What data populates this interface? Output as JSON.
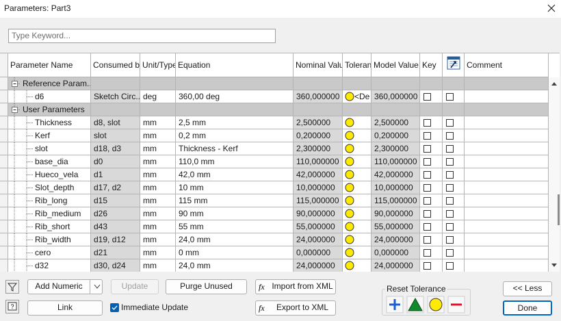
{
  "window": {
    "title": "Parameters: Part3"
  },
  "search": {
    "placeholder": "Type Keyword..."
  },
  "table": {
    "columns": [
      "Parameter Name",
      "Consumed by",
      "Unit/Type",
      "Equation",
      "Nominal Value",
      "Toleran",
      "Model Value",
      "Key",
      "Comment"
    ],
    "rows": [
      {
        "kind": "group",
        "name": "Reference Param..."
      },
      {
        "name": "d6",
        "consumed_by": "Sketch Circ...",
        "unit": "deg",
        "equation": "360,00 deg",
        "nominal": "360,000000",
        "tolerance": "<De",
        "model": "360,000000"
      },
      {
        "kind": "group",
        "name": "User Parameters"
      },
      {
        "name": "Thickness",
        "consumed_by": "d8, slot",
        "unit": "mm",
        "equation": "2,5 mm",
        "nominal": "2,500000",
        "model": "2,500000"
      },
      {
        "name": "Kerf",
        "consumed_by": "slot",
        "unit": "mm",
        "equation": "0,2 mm",
        "nominal": "0,200000",
        "model": "0,200000"
      },
      {
        "name": "slot",
        "consumed_by": "d18, d3",
        "unit": "mm",
        "equation": "Thickness - Kerf",
        "nominal": "2,300000",
        "model": "2,300000"
      },
      {
        "name": "base_dia",
        "consumed_by": "d0",
        "unit": "mm",
        "equation": "110,0 mm",
        "nominal": "110,000000",
        "model": "110,000000"
      },
      {
        "name": "Hueco_vela",
        "consumed_by": "d1",
        "unit": "mm",
        "equation": "42,0 mm",
        "nominal": "42,000000",
        "model": "42,000000"
      },
      {
        "name": "Slot_depth",
        "consumed_by": "d17, d2",
        "unit": "mm",
        "equation": "10 mm",
        "nominal": "10,000000",
        "model": "10,000000"
      },
      {
        "name": "Rib_long",
        "consumed_by": "d15",
        "unit": "mm",
        "equation": "115 mm",
        "nominal": "115,000000",
        "model": "115,000000"
      },
      {
        "name": "Rib_medium",
        "consumed_by": "d26",
        "unit": "mm",
        "equation": "90 mm",
        "nominal": "90,000000",
        "model": "90,000000"
      },
      {
        "name": "Rib_short",
        "consumed_by": "d43",
        "unit": "mm",
        "equation": "55 mm",
        "nominal": "55,000000",
        "model": "55,000000"
      },
      {
        "name": "Rib_width",
        "consumed_by": "d19, d12",
        "unit": "mm",
        "equation": "24,0 mm",
        "nominal": "24,000000",
        "model": "24,000000"
      },
      {
        "name": "cero",
        "consumed_by": "d21",
        "unit": "mm",
        "equation": "0 mm",
        "nominal": "0,000000",
        "model": "0,000000"
      },
      {
        "name": "d32",
        "consumed_by": "d30, d24",
        "unit": "mm",
        "equation": "24,0 mm",
        "nominal": "24,000000",
        "model": "24,000000"
      }
    ]
  },
  "buttons": {
    "add_numeric": "Add Numeric",
    "update": "Update",
    "purge_unused": "Purge Unused",
    "import_xml": "Import from XML",
    "export_xml": "Export to XML",
    "link": "Link",
    "less": "<< Less",
    "done": "Done"
  },
  "immediate_update": {
    "label": "Immediate Update"
  },
  "reset_tolerance": {
    "label": "Reset Tolerance"
  }
}
